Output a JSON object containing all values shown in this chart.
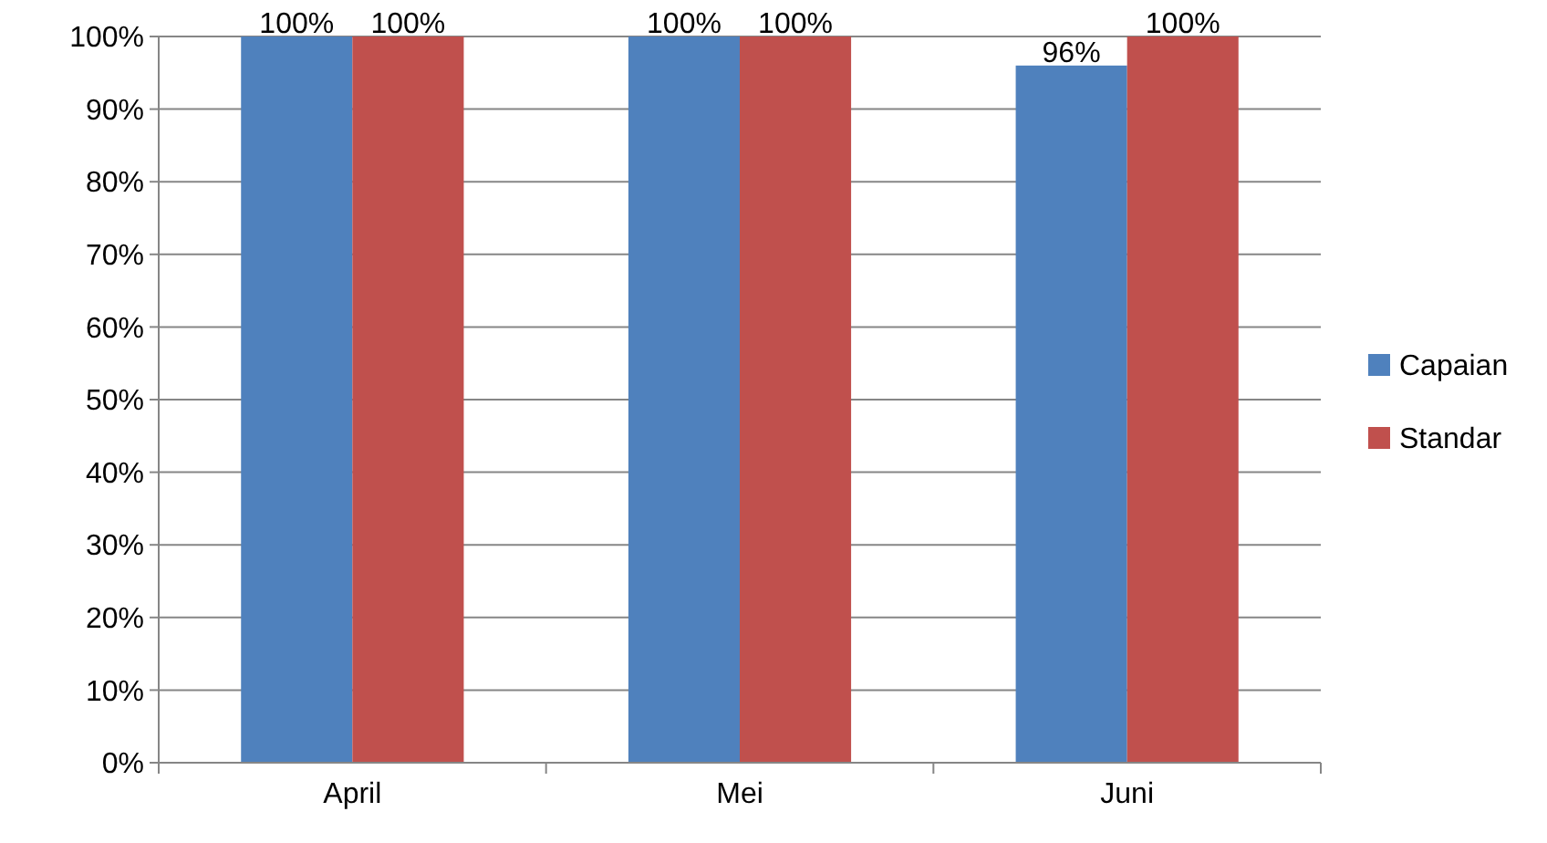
{
  "chart_data": {
    "type": "bar",
    "categories": [
      "April",
      "Mei",
      "Juni"
    ],
    "series": [
      {
        "name": "Capaian",
        "color": "#4f81bd",
        "values": [
          100,
          100,
          96
        ],
        "value_labels": [
          "100%",
          "100%",
          "96%"
        ]
      },
      {
        "name": "Standar",
        "color": "#c0504d",
        "values": [
          100,
          100,
          100
        ],
        "value_labels": [
          "100%",
          "100%",
          "100%"
        ]
      }
    ],
    "ylim": [
      0,
      100
    ],
    "yticks": [
      {
        "value": 0,
        "label": "0%"
      },
      {
        "value": 10,
        "label": "10%"
      },
      {
        "value": 20,
        "label": "20%"
      },
      {
        "value": 30,
        "label": "30%"
      },
      {
        "value": 40,
        "label": "40%"
      },
      {
        "value": 50,
        "label": "50%"
      },
      {
        "value": 60,
        "label": "60%"
      },
      {
        "value": 70,
        "label": "70%"
      },
      {
        "value": 80,
        "label": "80%"
      },
      {
        "value": 90,
        "label": "90%"
      },
      {
        "value": 100,
        "label": "100%"
      }
    ],
    "grid": "y",
    "legend": "right"
  }
}
